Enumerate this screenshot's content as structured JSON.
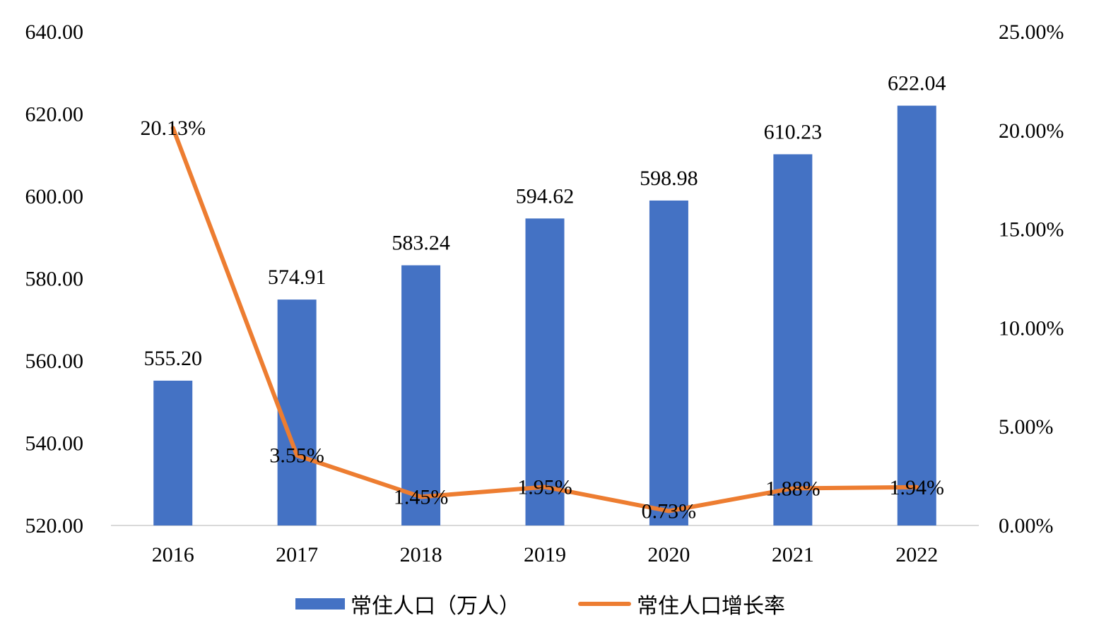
{
  "chart_data": {
    "type": "bar",
    "categories": [
      "2016",
      "2017",
      "2018",
      "2019",
      "2020",
      "2021",
      "2022"
    ],
    "series": [
      {
        "name": "常住人口（万人）",
        "type": "bar",
        "axis": "left",
        "values": [
          555.2,
          574.91,
          583.24,
          594.62,
          598.98,
          610.23,
          622.04
        ],
        "labels": [
          "555.20",
          "574.91",
          "583.24",
          "594.62",
          "598.98",
          "610.23",
          "622.04"
        ],
        "color": "#4472C4"
      },
      {
        "name": "常住人口增长率",
        "type": "line",
        "axis": "right",
        "values": [
          20.13,
          3.55,
          1.45,
          1.95,
          0.73,
          1.88,
          1.94
        ],
        "labels": [
          "20.13%",
          "3.55%",
          "1.45%",
          "1.95%",
          "0.73%",
          "1.88%",
          "1.94%"
        ],
        "color": "#ED7D31"
      }
    ],
    "y_left": {
      "lim": [
        520,
        640
      ],
      "ticks": [
        "520.00",
        "540.00",
        "560.00",
        "580.00",
        "600.00",
        "620.00",
        "640.00"
      ]
    },
    "y_right": {
      "lim": [
        0,
        25
      ],
      "ticks": [
        "0.00%",
        "5.00%",
        "10.00%",
        "15.00%",
        "20.00%",
        "25.00%"
      ]
    },
    "grid": false,
    "legend_position": "bottom"
  }
}
